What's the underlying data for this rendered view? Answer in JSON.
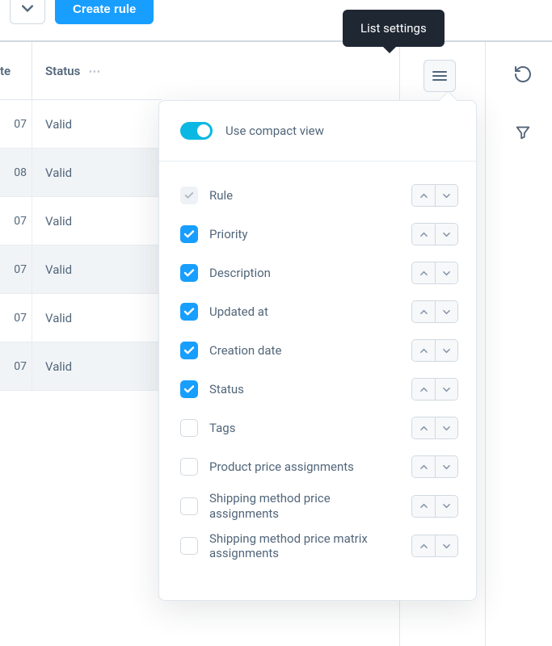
{
  "colors": {
    "primary": "#189eff",
    "toggle": "#0bb8e3",
    "tooltip_bg": "#1f2733",
    "text": "#52667a",
    "border": "#d1d9e0",
    "row_alt": "#f1f4f7"
  },
  "toolbar": {
    "create_rule_label": "Create rule"
  },
  "table": {
    "header": {
      "date": "te",
      "status": "Status"
    },
    "rows": [
      {
        "date": "07",
        "status": "Valid",
        "alt": false
      },
      {
        "date": "08",
        "status": "Valid",
        "alt": true
      },
      {
        "date": "07",
        "status": "Valid",
        "alt": false
      },
      {
        "date": "07",
        "status": "Valid",
        "alt": true
      },
      {
        "date": "07",
        "status": "Valid",
        "alt": false
      },
      {
        "date": "07",
        "status": "Valid",
        "alt": true
      }
    ]
  },
  "tooltip": {
    "label": "List settings"
  },
  "popover": {
    "compact_label": "Use compact view",
    "compact_on": true,
    "columns": [
      {
        "label": "Rule",
        "state": "locked"
      },
      {
        "label": "Priority",
        "state": "checked"
      },
      {
        "label": "Description",
        "state": "checked"
      },
      {
        "label": "Updated at",
        "state": "checked"
      },
      {
        "label": "Creation date",
        "state": "checked"
      },
      {
        "label": "Status",
        "state": "checked"
      },
      {
        "label": "Tags",
        "state": "empty"
      },
      {
        "label": "Product price assignments",
        "state": "empty"
      },
      {
        "label": "Shipping method price assignments",
        "state": "empty"
      },
      {
        "label": "Shipping method price matrix assignments",
        "state": "empty"
      }
    ]
  }
}
